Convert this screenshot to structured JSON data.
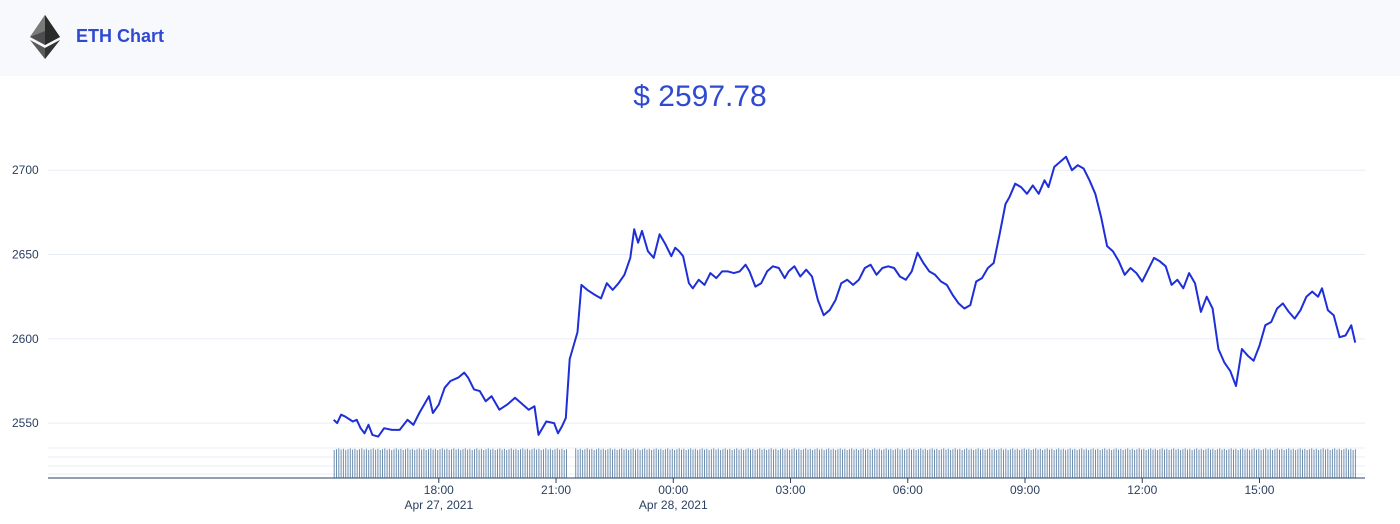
{
  "header": {
    "title": "ETH Chart",
    "logo_icon": "ethereum-diamond-icon"
  },
  "price": {
    "currency": "$",
    "value": "2597.78"
  },
  "colors": {
    "line": "#1e2fd8",
    "accent": "#2f49d1",
    "volume": "#6f8fb0",
    "grid": "#e8edf3",
    "axis": "#2a3f5f"
  },
  "chart_data": {
    "type": "line",
    "ylim": [
      2540,
      2712
    ],
    "y_ticks": [
      2550,
      2600,
      2650,
      2700
    ],
    "x_range_hours": [
      -8.0,
      25.7
    ],
    "x_ticks": [
      {
        "hour": 2,
        "label": "18:00",
        "date": "Apr 27, 2021"
      },
      {
        "hour": 5,
        "label": "21:00",
        "date": ""
      },
      {
        "hour": 8,
        "label": "00:00",
        "date": "Apr 28, 2021"
      },
      {
        "hour": 11,
        "label": "03:00",
        "date": ""
      },
      {
        "hour": 14,
        "label": "06:00",
        "date": ""
      },
      {
        "hour": 17,
        "label": "09:00",
        "date": ""
      },
      {
        "hour": 20,
        "label": "12:00",
        "date": ""
      },
      {
        "hour": 23,
        "label": "15:00",
        "date": ""
      }
    ],
    "series": [
      {
        "points": [
          [
            -0.69,
            2552
          ],
          [
            -0.6,
            2550
          ],
          [
            -0.5,
            2555
          ],
          [
            -0.4,
            2554
          ],
          [
            -0.2,
            2551
          ],
          [
            -0.1,
            2552
          ],
          [
            0.0,
            2547
          ],
          [
            0.1,
            2544
          ],
          [
            0.2,
            2549
          ],
          [
            0.3,
            2543
          ],
          [
            0.45,
            2542
          ],
          [
            0.6,
            2547
          ],
          [
            0.8,
            2546
          ],
          [
            1.0,
            2546
          ],
          [
            1.2,
            2552
          ],
          [
            1.35,
            2549
          ],
          [
            1.5,
            2556
          ],
          [
            1.6,
            2560
          ],
          [
            1.75,
            2566
          ],
          [
            1.85,
            2556
          ],
          [
            2.0,
            2561
          ],
          [
            2.15,
            2571
          ],
          [
            2.3,
            2575
          ],
          [
            2.5,
            2577
          ],
          [
            2.65,
            2580
          ],
          [
            2.75,
            2577
          ],
          [
            2.9,
            2570
          ],
          [
            3.05,
            2569
          ],
          [
            3.2,
            2563
          ],
          [
            3.35,
            2566
          ],
          [
            3.55,
            2558
          ],
          [
            3.75,
            2561
          ],
          [
            3.95,
            2565
          ],
          [
            4.1,
            2562
          ],
          [
            4.3,
            2558
          ],
          [
            4.45,
            2560
          ],
          [
            4.55,
            2543
          ],
          [
            4.75,
            2551
          ],
          [
            4.95,
            2550
          ],
          [
            5.05,
            2544
          ],
          [
            5.15,
            2548
          ],
          [
            5.25,
            2553
          ],
          [
            5.35,
            2588
          ],
          [
            5.55,
            2604
          ],
          [
            5.65,
            2632
          ],
          [
            5.8,
            2629
          ],
          [
            6.0,
            2626
          ],
          [
            6.15,
            2624
          ],
          [
            6.3,
            2633
          ],
          [
            6.45,
            2629
          ],
          [
            6.6,
            2633
          ],
          [
            6.75,
            2638
          ],
          [
            6.9,
            2648
          ],
          [
            7.0,
            2665
          ],
          [
            7.1,
            2657
          ],
          [
            7.2,
            2664
          ],
          [
            7.35,
            2652
          ],
          [
            7.5,
            2648
          ],
          [
            7.65,
            2662
          ],
          [
            7.8,
            2656
          ],
          [
            7.95,
            2649
          ],
          [
            8.05,
            2654
          ],
          [
            8.15,
            2652
          ],
          [
            8.25,
            2649
          ],
          [
            8.4,
            2633
          ],
          [
            8.5,
            2630
          ],
          [
            8.65,
            2635
          ],
          [
            8.8,
            2632
          ],
          [
            8.95,
            2639
          ],
          [
            9.1,
            2636
          ],
          [
            9.25,
            2640
          ],
          [
            9.4,
            2640
          ],
          [
            9.55,
            2639
          ],
          [
            9.7,
            2640
          ],
          [
            9.85,
            2644
          ],
          [
            9.95,
            2640
          ],
          [
            10.1,
            2631
          ],
          [
            10.25,
            2633
          ],
          [
            10.4,
            2640
          ],
          [
            10.55,
            2643
          ],
          [
            10.7,
            2642
          ],
          [
            10.85,
            2636
          ],
          [
            10.95,
            2640
          ],
          [
            11.1,
            2643
          ],
          [
            11.25,
            2637
          ],
          [
            11.4,
            2641
          ],
          [
            11.55,
            2637
          ],
          [
            11.7,
            2623
          ],
          [
            11.85,
            2614
          ],
          [
            12.0,
            2617
          ],
          [
            12.15,
            2623
          ],
          [
            12.3,
            2633
          ],
          [
            12.45,
            2635
          ],
          [
            12.6,
            2632
          ],
          [
            12.75,
            2635
          ],
          [
            12.9,
            2642
          ],
          [
            13.05,
            2644
          ],
          [
            13.2,
            2638
          ],
          [
            13.35,
            2642
          ],
          [
            13.5,
            2643
          ],
          [
            13.65,
            2642
          ],
          [
            13.8,
            2637
          ],
          [
            13.95,
            2635
          ],
          [
            14.1,
            2640
          ],
          [
            14.25,
            2651
          ],
          [
            14.4,
            2645
          ],
          [
            14.55,
            2640
          ],
          [
            14.7,
            2638
          ],
          [
            14.85,
            2634
          ],
          [
            15.0,
            2632
          ],
          [
            15.15,
            2626
          ],
          [
            15.3,
            2621
          ],
          [
            15.45,
            2618
          ],
          [
            15.6,
            2620
          ],
          [
            15.75,
            2634
          ],
          [
            15.9,
            2636
          ],
          [
            16.05,
            2642
          ],
          [
            16.2,
            2645
          ],
          [
            16.35,
            2662
          ],
          [
            16.5,
            2680
          ],
          [
            16.6,
            2684
          ],
          [
            16.75,
            2692
          ],
          [
            16.9,
            2690
          ],
          [
            17.05,
            2686
          ],
          [
            17.2,
            2691
          ],
          [
            17.35,
            2686
          ],
          [
            17.5,
            2694
          ],
          [
            17.6,
            2690
          ],
          [
            17.75,
            2702
          ],
          [
            17.9,
            2705
          ],
          [
            18.05,
            2708
          ],
          [
            18.2,
            2700
          ],
          [
            18.35,
            2703
          ],
          [
            18.5,
            2701
          ],
          [
            18.65,
            2694
          ],
          [
            18.8,
            2686
          ],
          [
            18.95,
            2672
          ],
          [
            19.1,
            2655
          ],
          [
            19.25,
            2652
          ],
          [
            19.4,
            2646
          ],
          [
            19.55,
            2638
          ],
          [
            19.7,
            2642
          ],
          [
            19.85,
            2639
          ],
          [
            20.0,
            2634
          ],
          [
            20.15,
            2641
          ],
          [
            20.3,
            2648
          ],
          [
            20.45,
            2646
          ],
          [
            20.6,
            2643
          ],
          [
            20.75,
            2632
          ],
          [
            20.9,
            2635
          ],
          [
            21.05,
            2630
          ],
          [
            21.2,
            2639
          ],
          [
            21.35,
            2633
          ],
          [
            21.5,
            2616
          ],
          [
            21.65,
            2625
          ],
          [
            21.8,
            2618
          ],
          [
            21.95,
            2594
          ],
          [
            22.1,
            2586
          ],
          [
            22.25,
            2581
          ],
          [
            22.4,
            2572
          ],
          [
            22.55,
            2594
          ],
          [
            22.7,
            2590
          ],
          [
            22.85,
            2587
          ],
          [
            23.0,
            2596
          ],
          [
            23.15,
            2608
          ],
          [
            23.3,
            2610
          ],
          [
            23.45,
            2618
          ],
          [
            23.6,
            2621
          ],
          [
            23.75,
            2616
          ],
          [
            23.9,
            2612
          ],
          [
            24.05,
            2617
          ],
          [
            24.2,
            2625
          ],
          [
            24.35,
            2628
          ],
          [
            24.5,
            2625
          ],
          [
            24.6,
            2630
          ],
          [
            24.75,
            2617
          ],
          [
            24.9,
            2614
          ],
          [
            25.05,
            2601
          ],
          [
            25.2,
            2602
          ],
          [
            25.35,
            2608
          ],
          [
            25.45,
            2597.78
          ]
        ]
      }
    ],
    "volume": {
      "x_start": -0.69,
      "x_end": 25.45,
      "gap_start": 5.3,
      "gap_end": 5.45
    },
    "grid": true,
    "legend": "none"
  }
}
